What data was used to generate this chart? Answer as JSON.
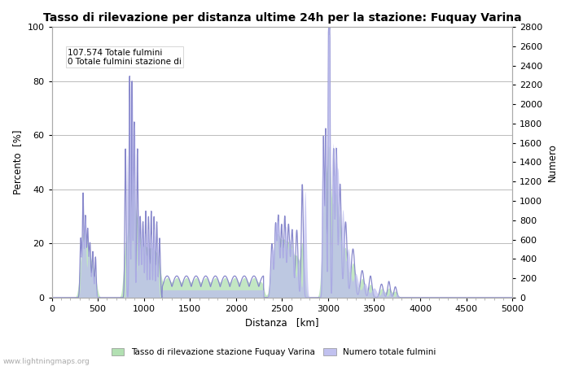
{
  "title": "Tasso di rilevazione per distanza ultime 24h per la stazione: Fuquay Varina",
  "xlabel": "Distanza   [km]",
  "ylabel_left": "Percento  [%]",
  "ylabel_right": "Numero",
  "xlim": [
    0,
    5000
  ],
  "ylim_left": [
    0,
    100
  ],
  "ylim_right": [
    0,
    2800
  ],
  "yticks_left": [
    0,
    20,
    40,
    60,
    80,
    100
  ],
  "yticks_right": [
    0,
    200,
    400,
    600,
    800,
    1000,
    1200,
    1400,
    1600,
    1800,
    2000,
    2200,
    2400,
    2600,
    2800
  ],
  "xticks": [
    0,
    500,
    1000,
    1500,
    2000,
    2500,
    3000,
    3500,
    4000,
    4500,
    5000
  ],
  "annotation_line1": "107.574 Totale fulmini",
  "annotation_line2": "0 Totale fulmini stazione di",
  "legend_label_green": "Tasso di rilevazione stazione Fuquay Varina",
  "legend_label_blue": "Numero totale fulmini",
  "watermark": "www.lightningmaps.org",
  "fill_green_color": "#aaddaa",
  "fill_green_alpha": 0.7,
  "fill_blue_color": "#bbbbee",
  "fill_blue_alpha": 0.7,
  "line_color": "#8888cc",
  "line_width": 0.9,
  "background_color": "#ffffff",
  "grid_color": "#bbbbbb",
  "title_fontsize": 10,
  "axis_fontsize": 8.5,
  "tick_fontsize": 8,
  "annotation_fontsize": 7.5
}
